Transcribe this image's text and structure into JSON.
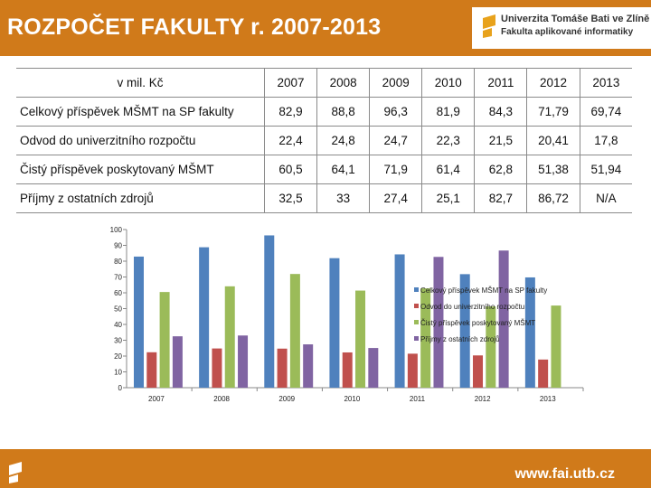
{
  "title": "ROZPOČET FAKULTY r. 2007-2013",
  "logo": {
    "line1": "Univerzita Tomáše Bati ve Zlíně",
    "line2": "Fakulta aplikované informatiky"
  },
  "table": {
    "unit_label": "v mil. Kč",
    "years": [
      "2007",
      "2008",
      "2009",
      "2010",
      "2011",
      "2012",
      "2013"
    ],
    "rows": [
      {
        "label": "Celkový příspěvek MŠMT na SP fakulty",
        "values": [
          "82,9",
          "88,8",
          "96,3",
          "81,9",
          "84,3",
          "71,79",
          "69,74"
        ]
      },
      {
        "label": "Odvod do univerzitního rozpočtu",
        "values": [
          "22,4",
          "24,8",
          "24,7",
          "22,3",
          "21,5",
          "20,41",
          "17,8"
        ]
      },
      {
        "label": "Čistý příspěvek poskytovaný MŠMT",
        "values": [
          "60,5",
          "64,1",
          "71,9",
          "61,4",
          "62,8",
          "51,38",
          "51,94"
        ]
      },
      {
        "label": "Příjmy z ostatních zdrojů",
        "values": [
          "32,5",
          "33",
          "27,4",
          "25,1",
          "82,7",
          "86,72",
          "N/A"
        ]
      }
    ]
  },
  "chart_data": {
    "type": "bar",
    "categories": [
      "2007",
      "2008",
      "2009",
      "2010",
      "2011",
      "2012",
      "2013"
    ],
    "ylim": [
      0,
      100
    ],
    "yticks": [
      0,
      10,
      20,
      30,
      40,
      50,
      60,
      70,
      80,
      90,
      100
    ],
    "grid": false,
    "legend_position": "right",
    "series": [
      {
        "name": "Celkový příspěvek MŠMT na SP fakulty",
        "color": "#4f81bd",
        "values": [
          82.9,
          88.8,
          96.3,
          81.9,
          84.3,
          71.79,
          69.74
        ]
      },
      {
        "name": "Odvod do univerzitního rozpočtu",
        "color": "#c0504d",
        "values": [
          22.4,
          24.8,
          24.7,
          22.3,
          21.5,
          20.41,
          17.8
        ]
      },
      {
        "name": "Čistý příspěvek poskytovaný MŠMT",
        "color": "#9bbb59",
        "values": [
          60.5,
          64.1,
          71.9,
          61.4,
          62.8,
          51.38,
          51.94
        ]
      },
      {
        "name": "Příjmy z ostatních zdrojů",
        "color": "#8064a2",
        "values": [
          32.5,
          33,
          27.4,
          25.1,
          82.7,
          86.72,
          null
        ]
      }
    ]
  },
  "footer": {
    "url": "www.fai.utb.cz"
  },
  "colors": {
    "accent": "#d07a1a"
  },
  "icons": {
    "header_logo": "utb-flag-icon",
    "footer_logo": "utb-flag-icon"
  }
}
